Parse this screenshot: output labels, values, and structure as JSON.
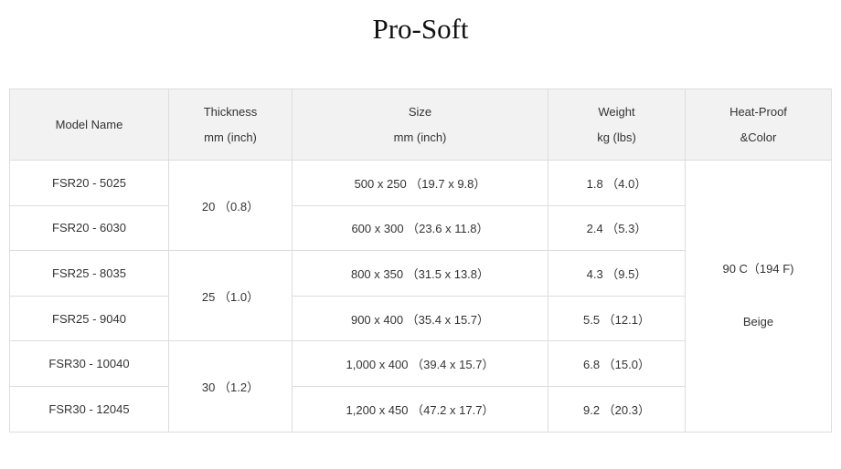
{
  "title": "Pro-Soft",
  "headers": [
    {
      "line1": "Model Name",
      "line2": ""
    },
    {
      "line1": "Thickness",
      "line2": "mm (inch)"
    },
    {
      "line1": "Size",
      "line2": "mm (inch)"
    },
    {
      "line1": "Weight",
      "line2": "kg (lbs)"
    },
    {
      "line1": "Heat-Proof",
      "line2": "&Color"
    }
  ],
  "rows": [
    {
      "model": "FSR20 - 5025",
      "size": "500 x 250 （19.7 x 9.8）",
      "weight": "1.8 （4.0）"
    },
    {
      "model": "FSR20 - 6030",
      "size": "600 x 300 （23.6 x 11.8）",
      "weight": "2.4 （5.3）"
    },
    {
      "model": "FSR25 - 8035",
      "size": "800 x 350 （31.5 x 13.8）",
      "weight": "4.3 （9.5）"
    },
    {
      "model": "FSR25 - 9040",
      "size": "900 x 400 （35.4 x 15.7）",
      "weight": "5.5 （12.1）"
    },
    {
      "model": "FSR30 - 10040",
      "size": "1,000 x 400 （39.4 x 15.7）",
      "weight": "6.8 （15.0）"
    },
    {
      "model": "FSR30 - 12045",
      "size": "1,200 x 450 （47.2 x 17.7）",
      "weight": "9.2 （20.3）"
    }
  ],
  "thickness": [
    "20 （0.8）",
    "25 （1.0）",
    "30 （1.2）"
  ],
  "heat_proof": "90 C（194 F)",
  "color": "Beige"
}
